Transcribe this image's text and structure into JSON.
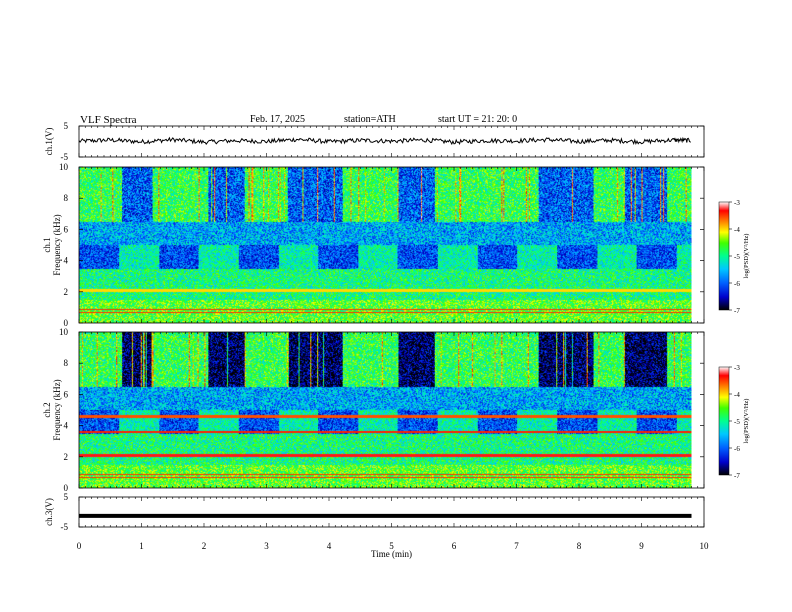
{
  "header": {
    "title": "VLF  Spectra",
    "date": "Feb. 17, 2025",
    "station": "station=ATH",
    "start_ut": "start  UT  =   21: 20: 0"
  },
  "chart_data": [
    {
      "type": "line",
      "name": "ch1-waveform",
      "ylabel": "ch.1(V)",
      "ylim": [
        -5,
        5
      ],
      "yticks": [
        "5",
        "-5"
      ],
      "x": [
        0,
        0.5,
        1,
        1.5,
        2,
        2.5,
        3,
        3.5,
        4,
        4.5,
        5,
        5.5,
        6,
        6.5,
        7,
        7.5,
        8,
        8.5,
        9,
        9.5,
        9.8
      ],
      "y": [
        0.1,
        0.5,
        -0.1,
        0.6,
        -0.2,
        0.3,
        0.0,
        0.7,
        -0.1,
        0.4,
        0.1,
        0.5,
        -0.2,
        0.3,
        0.2,
        0.6,
        0.0,
        0.4,
        -0.1,
        0.5,
        0.3
      ]
    },
    {
      "type": "heatmap",
      "name": "ch1-spectrogram",
      "ylabel": "ch.1 Frequency (kHz)",
      "ylim": [
        0,
        10
      ],
      "yticks": [
        "0",
        "2",
        "4",
        "6",
        "8",
        "10"
      ],
      "colorbar": {
        "label": "log(PSD)(V²/Hz)",
        "range": [
          -7,
          -3
        ],
        "ticks": [
          "-3",
          "-4",
          "-5",
          "-6",
          "-7"
        ]
      }
    },
    {
      "type": "heatmap",
      "name": "ch2-spectrogram",
      "ylabel": "ch.2 Frequency (kHz)",
      "ylim": [
        0,
        10
      ],
      "yticks": [
        "0",
        "2",
        "4",
        "6",
        "8",
        "10"
      ],
      "colorbar": {
        "label": "log(PSD)(V²/Hz)",
        "range": [
          -7,
          -3
        ],
        "ticks": [
          "-3",
          "-4",
          "-5",
          "-6",
          "-7"
        ]
      }
    },
    {
      "type": "line",
      "name": "ch3-waveform",
      "ylabel": "ch.3(V)",
      "ylim": [
        -5,
        5
      ],
      "yticks": [
        "5",
        "-5"
      ],
      "x": [
        0,
        9.8
      ],
      "y": [
        -1.3,
        -1.3
      ]
    }
  ],
  "x_axis": {
    "label": "Time  (min)",
    "range": [
      0,
      10
    ],
    "ticks": [
      "0",
      "1",
      "2",
      "3",
      "4",
      "5",
      "6",
      "7",
      "8",
      "9",
      "10"
    ]
  },
  "colors": {
    "scale": [
      "#000000",
      "#0000cc",
      "#0060ff",
      "#00c8ff",
      "#00ff90",
      "#40ff00",
      "#ffff00",
      "#ff8000",
      "#ff0000",
      "#ffffff"
    ],
    "trace": "#000000"
  }
}
